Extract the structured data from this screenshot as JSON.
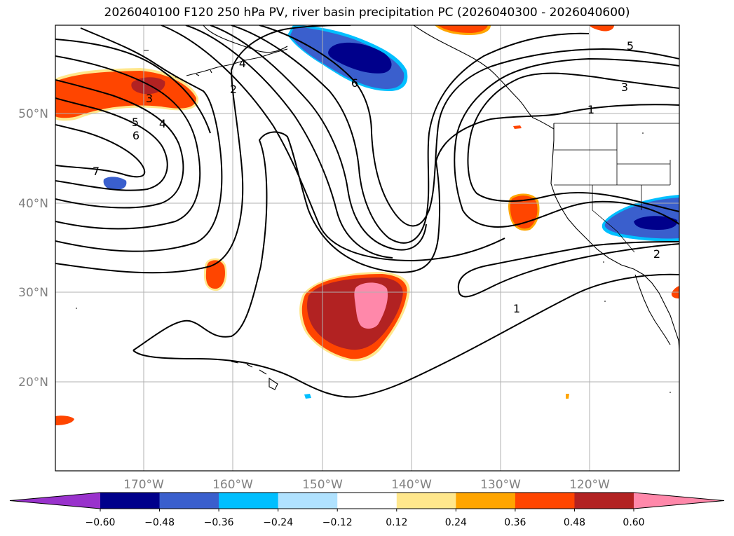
{
  "title": "2026040100 F120 250 hPa PV, river basin precipitation PC (2026040300 - 2026040600)",
  "lat_labels": [
    "50°N",
    "40°N",
    "30°N",
    "20°N"
  ],
  "lon_labels": [
    "170°W",
    "160°W",
    "150°W",
    "140°W",
    "130°W",
    "120°W"
  ],
  "contour_labels": [
    "7",
    "6",
    "5",
    "4",
    "3",
    "2",
    "6",
    "4",
    "5",
    "3",
    "1",
    "2",
    "1"
  ],
  "colorbar": {
    "ticks": [
      "−0.60",
      "−0.48",
      "−0.36",
      "−0.24",
      "−0.12",
      "0.12",
      "0.24",
      "0.36",
      "0.48",
      "0.60"
    ],
    "colors": [
      "#9932CC",
      "#00008B",
      "#3A5FCD",
      "#00BFFF",
      "#B0E2FF",
      "#FFFFFF",
      "#FFE78C",
      "#FFA500",
      "#FF4500",
      "#B22222",
      "#FF88AA"
    ]
  },
  "colors": {
    "contour": "#000000",
    "grid": "#b0b0b0",
    "coast": "#000000"
  }
}
